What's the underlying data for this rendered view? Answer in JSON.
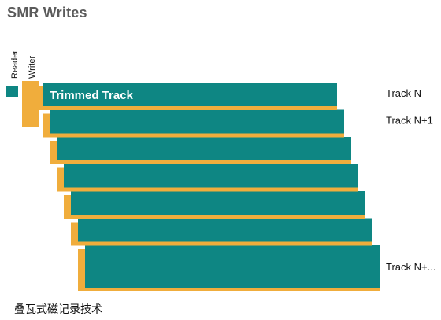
{
  "title": "SMR Writes",
  "head_labels": {
    "reader": "Reader",
    "writer": "Writer"
  },
  "tracks": [
    {
      "label": "Trimmed Track",
      "side_label": "Track N"
    },
    {
      "label": "",
      "side_label": "Track N+1"
    },
    {
      "label": "",
      "side_label": ""
    },
    {
      "label": "",
      "side_label": ""
    },
    {
      "label": "",
      "side_label": ""
    },
    {
      "label": "",
      "side_label": ""
    },
    {
      "label": "",
      "side_label": "Track N+..."
    }
  ],
  "colors": {
    "teal": "#0e8683",
    "orange": "#f0ad3c",
    "title": "#5b5b5b",
    "text": "#111111"
  },
  "caption": "叠瓦式磁记录技术"
}
